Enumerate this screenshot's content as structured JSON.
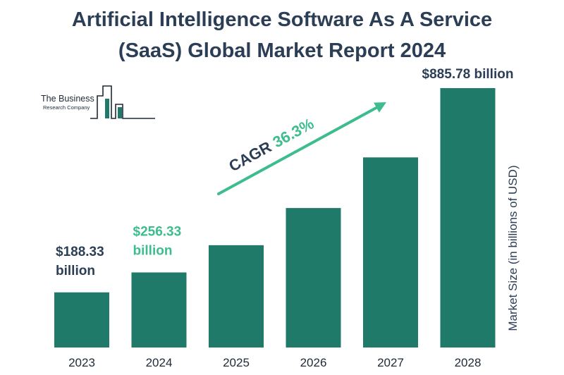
{
  "header": {
    "title_line1": "Artificial Intelligence Software As A Service",
    "title_line2": "(SaaS) Global Market Report 2024"
  },
  "logo": {
    "name": "The Business",
    "sub": "Research Company"
  },
  "colors": {
    "bar": "#1f7a6a",
    "title": "#2b3e55",
    "accent": "#3dbd8e",
    "label_dark": "#2b3e55"
  },
  "chart_data": {
    "type": "bar",
    "categories": [
      "2023",
      "2024",
      "2025",
      "2026",
      "2027",
      "2028"
    ],
    "values": [
      188.33,
      256.33,
      349.4,
      476.3,
      649.2,
      885.78
    ],
    "ylabel": "Market Size (in billions of USD)",
    "ylim": [
      0,
      900
    ],
    "grid": false,
    "data_labels": [
      {
        "index": 0,
        "line1": "$188.33",
        "line2": "billion",
        "color": "#2b3e55"
      },
      {
        "index": 1,
        "line1": "$256.33",
        "line2": "billion",
        "color": "#3dbd8e"
      },
      {
        "index": 5,
        "line1": "$885.78 billion",
        "line2": "",
        "color": "#2b3e55"
      }
    ],
    "annotation": {
      "prefix": "CAGR",
      "value": "36.3%"
    }
  }
}
